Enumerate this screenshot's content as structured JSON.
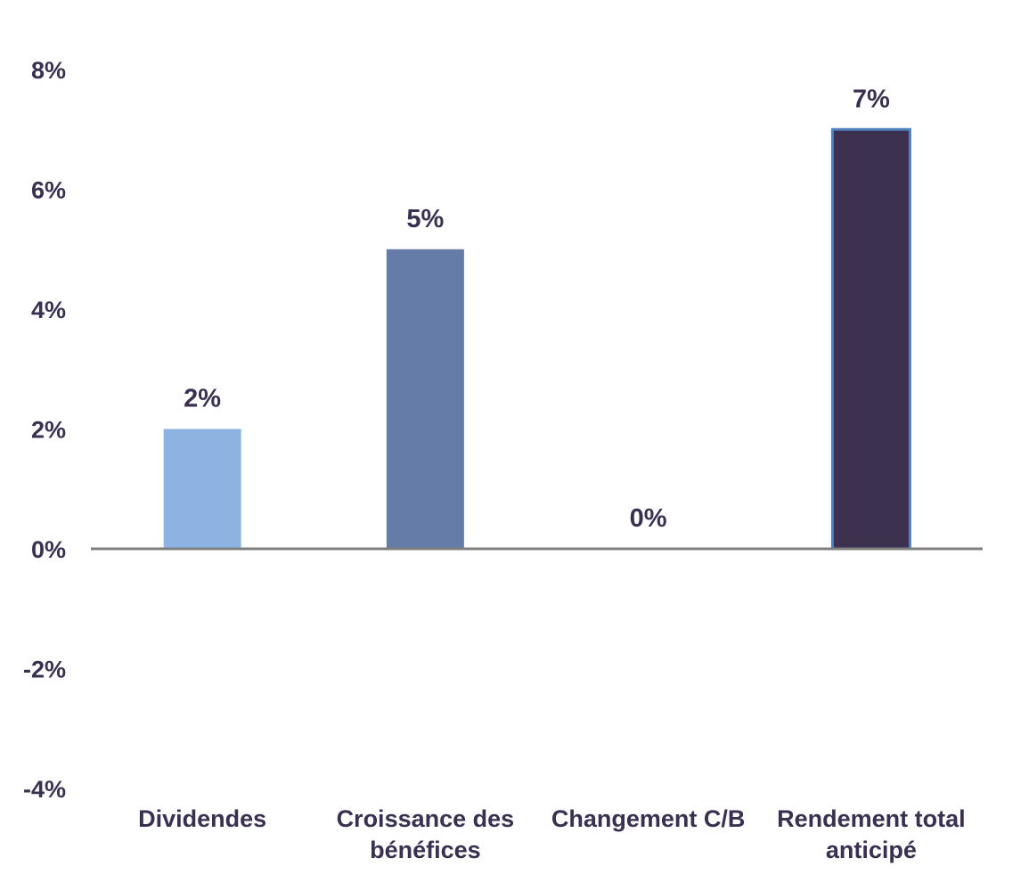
{
  "chart_data": {
    "type": "bar",
    "categories": [
      [
        "Dividendes"
      ],
      [
        "Croissance des",
        "bénéfices"
      ],
      [
        "Changement C/B"
      ],
      [
        "Rendement total",
        "anticipé"
      ]
    ],
    "values": [
      2,
      5,
      0,
      7
    ],
    "data_labels": [
      "2%",
      "5%",
      "0%",
      "7%"
    ],
    "ylim": [
      -4,
      8
    ],
    "yticks": [
      8,
      6,
      4,
      2,
      0,
      -2,
      -4
    ],
    "ytick_labels": [
      "8%",
      "6%",
      "4%",
      "2%",
      "0%",
      "-2%",
      "-4%"
    ],
    "bar_colors": [
      "#8db3e2",
      "#667ca8",
      "#667ca8",
      "#3d3150"
    ],
    "bar_stroke": [
      null,
      null,
      null,
      "#4f81bd"
    ],
    "text_color": "#3a3150",
    "axis_color": "#7f7f7f",
    "grid": false,
    "legend": "none"
  }
}
